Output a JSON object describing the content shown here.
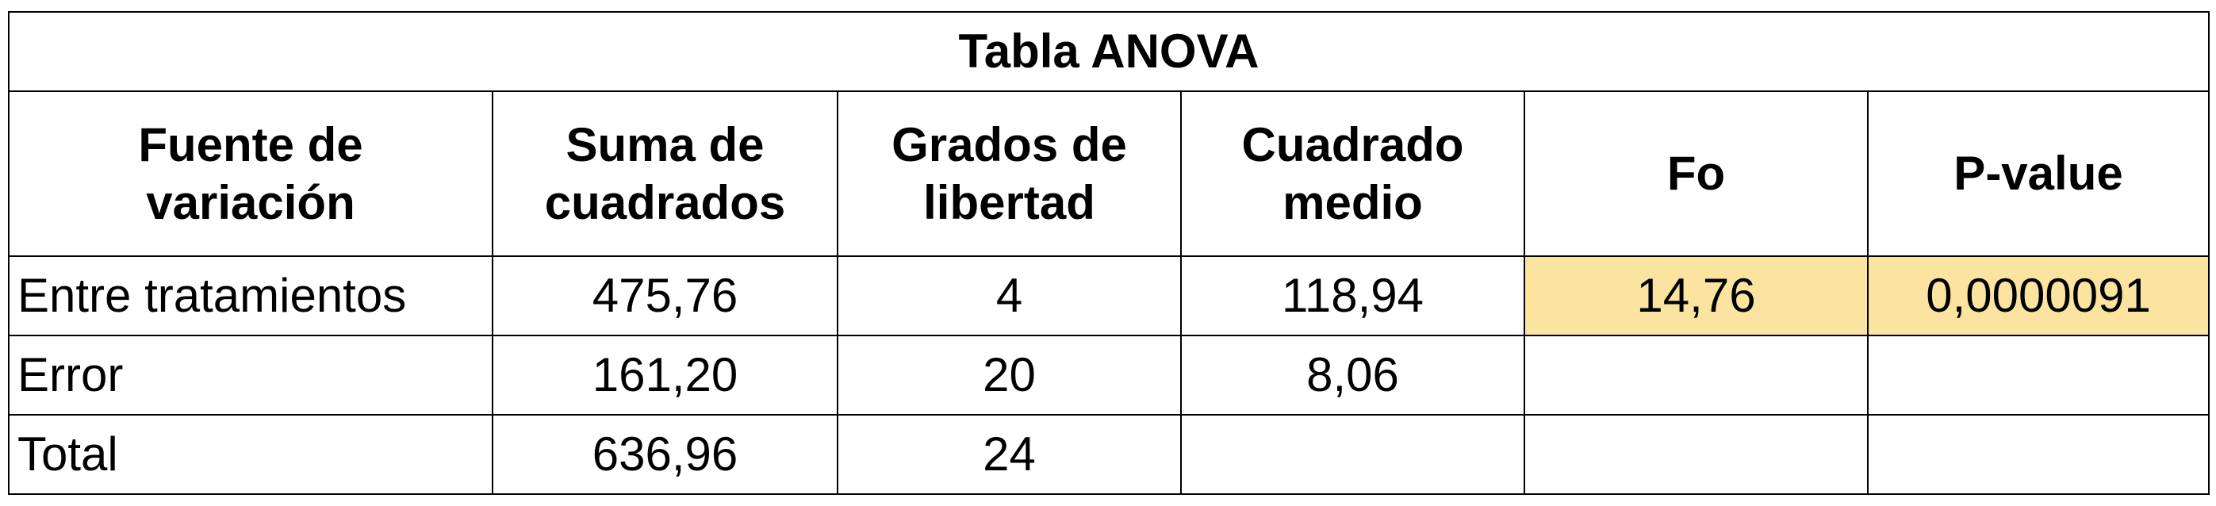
{
  "table": {
    "title": "Tabla ANOVA",
    "headers": [
      {
        "line1": "Fuente de",
        "line2": "variación"
      },
      {
        "line1": "Suma de",
        "line2": "cuadrados"
      },
      {
        "line1": "Grados de",
        "line2": "libertad"
      },
      {
        "line1": "Cuadrado",
        "line2": "medio"
      },
      {
        "line1": "Fo",
        "line2": ""
      },
      {
        "line1": "P-value",
        "line2": ""
      }
    ],
    "rows": [
      {
        "source": "Entre tratamientos",
        "ss": "475,76",
        "df": "4",
        "ms": "118,94",
        "fo": "14,76",
        "pvalue": "0,0000091"
      },
      {
        "source": "Error",
        "ss": "161,20",
        "df": "20",
        "ms": "8,06",
        "fo": "",
        "pvalue": ""
      },
      {
        "source": "Total",
        "ss": "636,96",
        "df": "24",
        "ms": "",
        "fo": "",
        "pvalue": ""
      }
    ],
    "highlight_color": "#fbe49f"
  }
}
